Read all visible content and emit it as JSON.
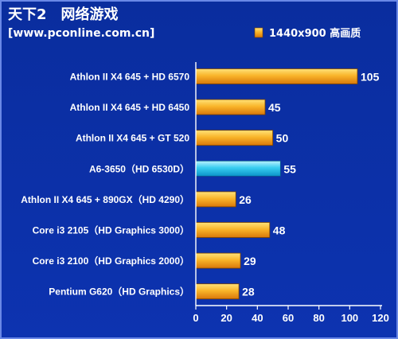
{
  "header": {
    "title": "天下2　网络游戏",
    "site": "[www.pconline.com.cn]"
  },
  "colors": {
    "background": "#0b2fa3",
    "bar_orange": "#f4a21c",
    "bar_cyan": "#2ec8ee",
    "frame_border": "#6a88e6"
  },
  "chart_data": {
    "type": "bar",
    "orientation": "horizontal",
    "title": "天下2　网络游戏",
    "legend": {
      "label": "1440x900 高画质",
      "position": "top-right"
    },
    "categories": [
      "Athlon II X4 645 + HD 6570",
      "Athlon II X4 645 + HD 6450",
      "Athlon II X4 645 + GT 520",
      "A6-3650（HD 6530D）",
      "Athlon II X4 645 + 890GX（HD 4290）",
      "Core i3 2105（HD Graphics 3000）",
      "Core i3 2100（HD Graphics 2000）",
      "Pentium G620（HD Graphics）"
    ],
    "series": [
      {
        "name": "1440x900 高画质",
        "values": [
          105,
          45,
          50,
          55,
          26,
          48,
          29,
          28
        ]
      }
    ],
    "highlight_index": 3,
    "xlim": [
      0,
      120
    ],
    "xticks": [
      0,
      20,
      40,
      60,
      80,
      100,
      120
    ],
    "grid": false
  }
}
